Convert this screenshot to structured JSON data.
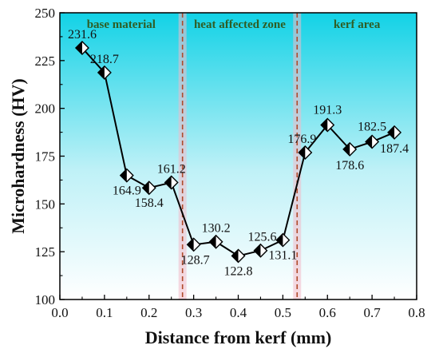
{
  "chart_data": {
    "type": "line",
    "xlabel": "Distance from kerf (mm)",
    "ylabel": "Microhardness (HV)",
    "xlim": [
      0.0,
      0.8
    ],
    "ylim": [
      100,
      250
    ],
    "xticks": [
      "0.0",
      "0.1",
      "0.2",
      "0.3",
      "0.4",
      "0.5",
      "0.6",
      "0.7",
      "0.8"
    ],
    "yticks": [
      "100",
      "125",
      "150",
      "175",
      "200",
      "225",
      "250"
    ],
    "grid": false,
    "marker": "half-filled-diamond",
    "line_color": "#000000",
    "series": [
      {
        "x": [
          0.05,
          0.1,
          0.15,
          0.2,
          0.25,
          0.3,
          0.35,
          0.4,
          0.45,
          0.5,
          0.55,
          0.6,
          0.65,
          0.7,
          0.75
        ],
        "values": [
          231.6,
          218.7,
          164.9,
          158.4,
          161.2,
          128.7,
          130.2,
          122.8,
          125.6,
          131.1,
          176.9,
          191.3,
          178.6,
          182.5,
          187.4
        ],
        "labels": [
          "231.6",
          "218.7",
          "164.9",
          "158.4",
          "161.2",
          "128.7",
          "130.2",
          "122.8",
          "125.6",
          "131.1",
          "176.9",
          "191.3",
          "178.6",
          "182.5",
          "187.4"
        ]
      }
    ],
    "regions": [
      {
        "label": "base material",
        "x_start": 0.0,
        "x_end": 0.275,
        "color": "#16d4e8"
      },
      {
        "label": "heat affected zone",
        "x_start": 0.275,
        "x_end": 0.532,
        "color": "#16d4e8"
      },
      {
        "label": "kerf area",
        "x_start": 0.532,
        "x_end": 0.8,
        "color": "#16d4e8"
      }
    ],
    "boundaries": [
      0.275,
      0.532
    ],
    "boundary_color": "#b04a2a"
  }
}
